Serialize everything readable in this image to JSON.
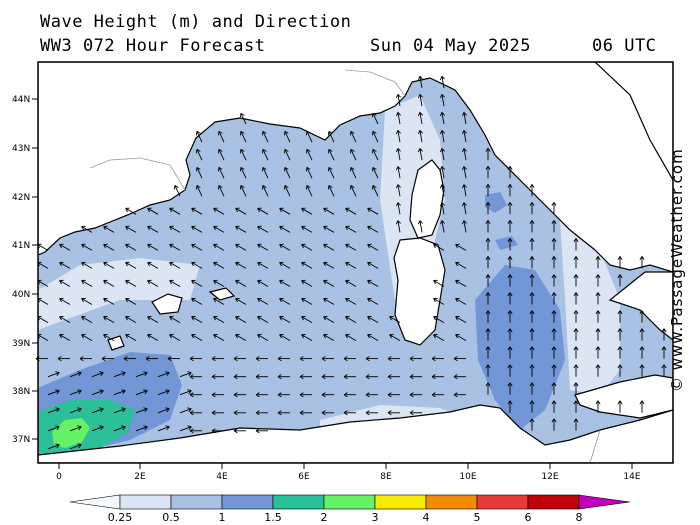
{
  "header": {
    "title_line1": "Wave Height (m) and Direction",
    "title_line2": "WW3 072 Hour Forecast",
    "date": "Sun 04 May 2025",
    "time": "06 UTC"
  },
  "axes": {
    "lat_labels": [
      "44N",
      "43N",
      "42N",
      "41N",
      "40N",
      "39N",
      "38N",
      "37N"
    ],
    "lon_labels": [
      "0",
      "2E",
      "4E",
      "6E",
      "8E",
      "10E",
      "12E",
      "14E"
    ]
  },
  "legend": {
    "title": "",
    "bins": [
      {
        "color": "#f4f7fb"
      },
      {
        "color": "#dbe5f3"
      },
      {
        "color": "#a9c1e2"
      },
      {
        "color": "#7296d6"
      },
      {
        "color": "#2bbf9a"
      },
      {
        "color": "#66f266"
      },
      {
        "color": "#f7eb00"
      },
      {
        "color": "#f28c00"
      },
      {
        "color": "#e83a3a"
      },
      {
        "color": "#c0000a"
      },
      {
        "color": "#c000c0"
      }
    ],
    "labels": [
      "0.25",
      "0.5",
      "1",
      "1.5",
      "2",
      "3",
      "4",
      "5",
      "6",
      "8"
    ]
  },
  "watermark": "© www.PassageWeather.com",
  "map": {
    "colors": {
      "sea_light": "#a9c1e2",
      "sea_pale": "#dbe5f3",
      "sea_mid": "#7296d6",
      "wave_teal": "#2bbf9a",
      "wave_green": "#66f266",
      "land": "#ffffff",
      "arrow": "#000000"
    }
  }
}
